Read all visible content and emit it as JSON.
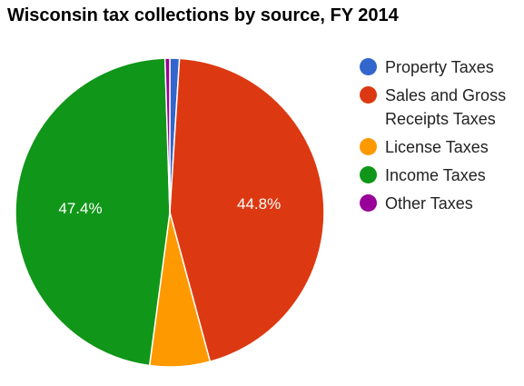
{
  "chart_data": {
    "type": "pie",
    "title": "Wisconsin tax collections by source, FY 2014",
    "slices": [
      {
        "label": "Property Taxes",
        "value": 1.0,
        "color": "#3366cc"
      },
      {
        "label": "Sales and Gross Receipts Taxes",
        "value": 44.8,
        "color": "#dc3912",
        "data_label": "44.8%"
      },
      {
        "label": "License Taxes",
        "value": 6.3,
        "color": "#ff9900"
      },
      {
        "label": "Income Taxes",
        "value": 47.4,
        "color": "#109618",
        "data_label": "47.4%"
      },
      {
        "label": "Other Taxes",
        "value": 0.5,
        "color": "#990099"
      }
    ],
    "legend_position": "right"
  },
  "legend": {
    "property": "Property Taxes",
    "sales_line1": "Sales and Gross",
    "sales_line2": "Receipts Taxes",
    "license": "License Taxes",
    "income": "Income Taxes",
    "other": "Other Taxes"
  }
}
